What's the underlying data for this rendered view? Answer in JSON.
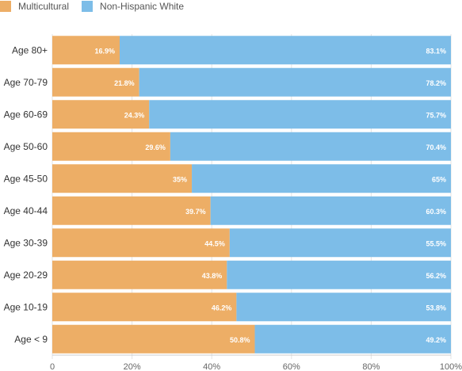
{
  "chart_data": {
    "type": "bar",
    "orientation": "horizontal",
    "stacked": true,
    "categories": [
      "Age 80+",
      "Age 70-79",
      "Age 60-69",
      "Age 50-60",
      "Age 45-50",
      "Age 40-44",
      "Age 30-39",
      "Age 20-29",
      "Age 10-19",
      "Age < 9"
    ],
    "series": [
      {
        "name": "Multicultural",
        "color": "#EDAE66",
        "values": [
          16.9,
          21.8,
          24.3,
          29.6,
          35,
          39.7,
          44.5,
          43.8,
          46.2,
          50.8
        ],
        "labels": [
          "16.9%",
          "21.8%",
          "24.3%",
          "29.6%",
          "35%",
          "39.7%",
          "44.5%",
          "43.8%",
          "46.2%",
          "50.8%"
        ]
      },
      {
        "name": "Non-Hispanic White",
        "color": "#7DBDE8",
        "values": [
          83.1,
          78.2,
          75.7,
          70.4,
          65,
          60.3,
          55.5,
          56.2,
          53.8,
          49.2
        ],
        "labels": [
          "83.1%",
          "78.2%",
          "75.7%",
          "70.4%",
          "65%",
          "60.3%",
          "55.5%",
          "56.2%",
          "53.8%",
          "49.2%"
        ]
      }
    ],
    "xlim": [
      0,
      100
    ],
    "xticks": [
      "0",
      "20%",
      "40%",
      "60%",
      "80%",
      "100%"
    ],
    "legend_position": "top-left",
    "grid": true
  }
}
